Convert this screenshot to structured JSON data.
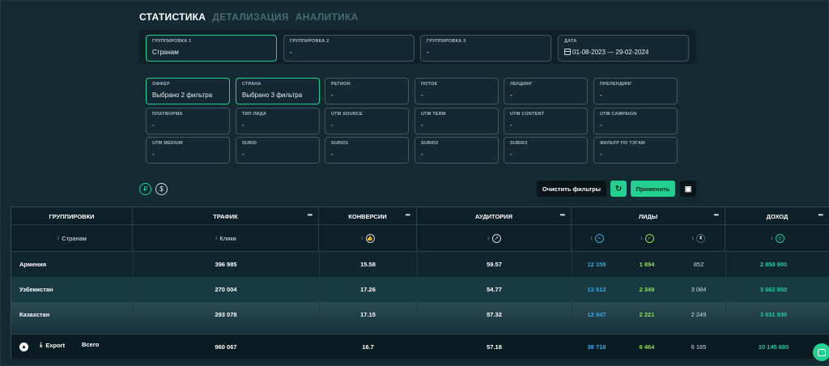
{
  "tabs": [
    {
      "label": "СТАТИСТИКА",
      "active": true
    },
    {
      "label": "ДЕТАЛИЗАЦИЯ",
      "active": false
    },
    {
      "label": "АНАЛИТИКА",
      "active": false
    }
  ],
  "grouping": {
    "g1": {
      "label": "ГРУППИРОВКА 1",
      "value": "Странам"
    },
    "g2": {
      "label": "ГРУППИРОВКА 2",
      "value": "-"
    },
    "g3": {
      "label": "ГРУППИРОВКА 3",
      "value": "-"
    },
    "date": {
      "label": "ДАТА",
      "value": "01-08-2023 — 29-02-2024"
    }
  },
  "filters": {
    "offer": {
      "label": "ОФФЕР",
      "value": "Выбрано 2 фильтра"
    },
    "country": {
      "label": "СТРАНА",
      "value": "Выбрано 3 фильтра"
    },
    "region": {
      "label": "РЕГИОН",
      "value": "-"
    },
    "stream": {
      "label": "ПОТОК",
      "value": "-"
    },
    "landing": {
      "label": "ЛЕНДИНГ",
      "value": "-"
    },
    "prelanding": {
      "label": "ПРЕЛЕНДИНГ",
      "value": "-"
    },
    "platform": {
      "label": "ПЛАТФОРМА",
      "value": "-"
    },
    "lead_type": {
      "label": "ТИП ЛИДА",
      "value": "-"
    },
    "utm_source": {
      "label": "UTM SOURCE",
      "value": "-"
    },
    "utm_term": {
      "label": "UTM TERM",
      "value": "-"
    },
    "utm_content": {
      "label": "UTM CONTENT",
      "value": "-"
    },
    "utm_campaign": {
      "label": "UTM CAMPAIGN",
      "value": "-"
    },
    "utm_medium": {
      "label": "UTM MEDIUM",
      "value": "-"
    },
    "subid": {
      "label": "SUBID",
      "value": "-"
    },
    "subid1": {
      "label": "SUBID1",
      "value": "-"
    },
    "subid2": {
      "label": "SUBID2",
      "value": "-"
    },
    "subid3": {
      "label": "SUBID3",
      "value": "-"
    },
    "tag": {
      "label": "ФИЛЬТР ПО ТЭГАМ",
      "value": "-"
    }
  },
  "currency": {
    "rub": "₽",
    "usd": "$"
  },
  "actions": {
    "clear": "Очистить фильтры",
    "apply": "Применить"
  },
  "table": {
    "headers": {
      "group": "ГРУППИРОВКИ",
      "traffic": "ТРАФИК",
      "conv": "КОНВЕРСИИ",
      "aud": "АУДИТОРИЯ",
      "leads": "ЛИДЫ",
      "income": "ДОХОД",
      "more": "•••"
    },
    "sub": {
      "group": "Странам",
      "traffic": "Клики"
    },
    "rows": [
      {
        "name": "Армения",
        "traffic": "396 985",
        "conv": "15.58",
        "aud": "59.57",
        "l1": "12 159",
        "l2": "1 894",
        "l3": "852",
        "income": "2 850 900"
      },
      {
        "name": "Узбекистан",
        "traffic": "270 004",
        "conv": "17.26",
        "aud": "54.77",
        "l1": "13 612",
        "l2": "2 349",
        "l3": "3 084",
        "income": "3 662 850"
      },
      {
        "name": "Казахстан",
        "traffic": "293 078",
        "conv": "17.15",
        "aud": "57.32",
        "l1": "12 947",
        "l2": "2 221",
        "l3": "2 249",
        "income": "3 631 930"
      }
    ],
    "total": {
      "export": "Export",
      "label": "Всего",
      "traffic": "960 067",
      "conv": "16.7",
      "aud": "57.18",
      "l1": "38 718",
      "l2": "6 464",
      "l3": "6 185",
      "income": "10 145 680"
    }
  },
  "colors": {
    "accent": "#22d08f",
    "leads_blue": "#38a8e6",
    "leads_green": "#86e05a",
    "income": "#25c79a"
  }
}
